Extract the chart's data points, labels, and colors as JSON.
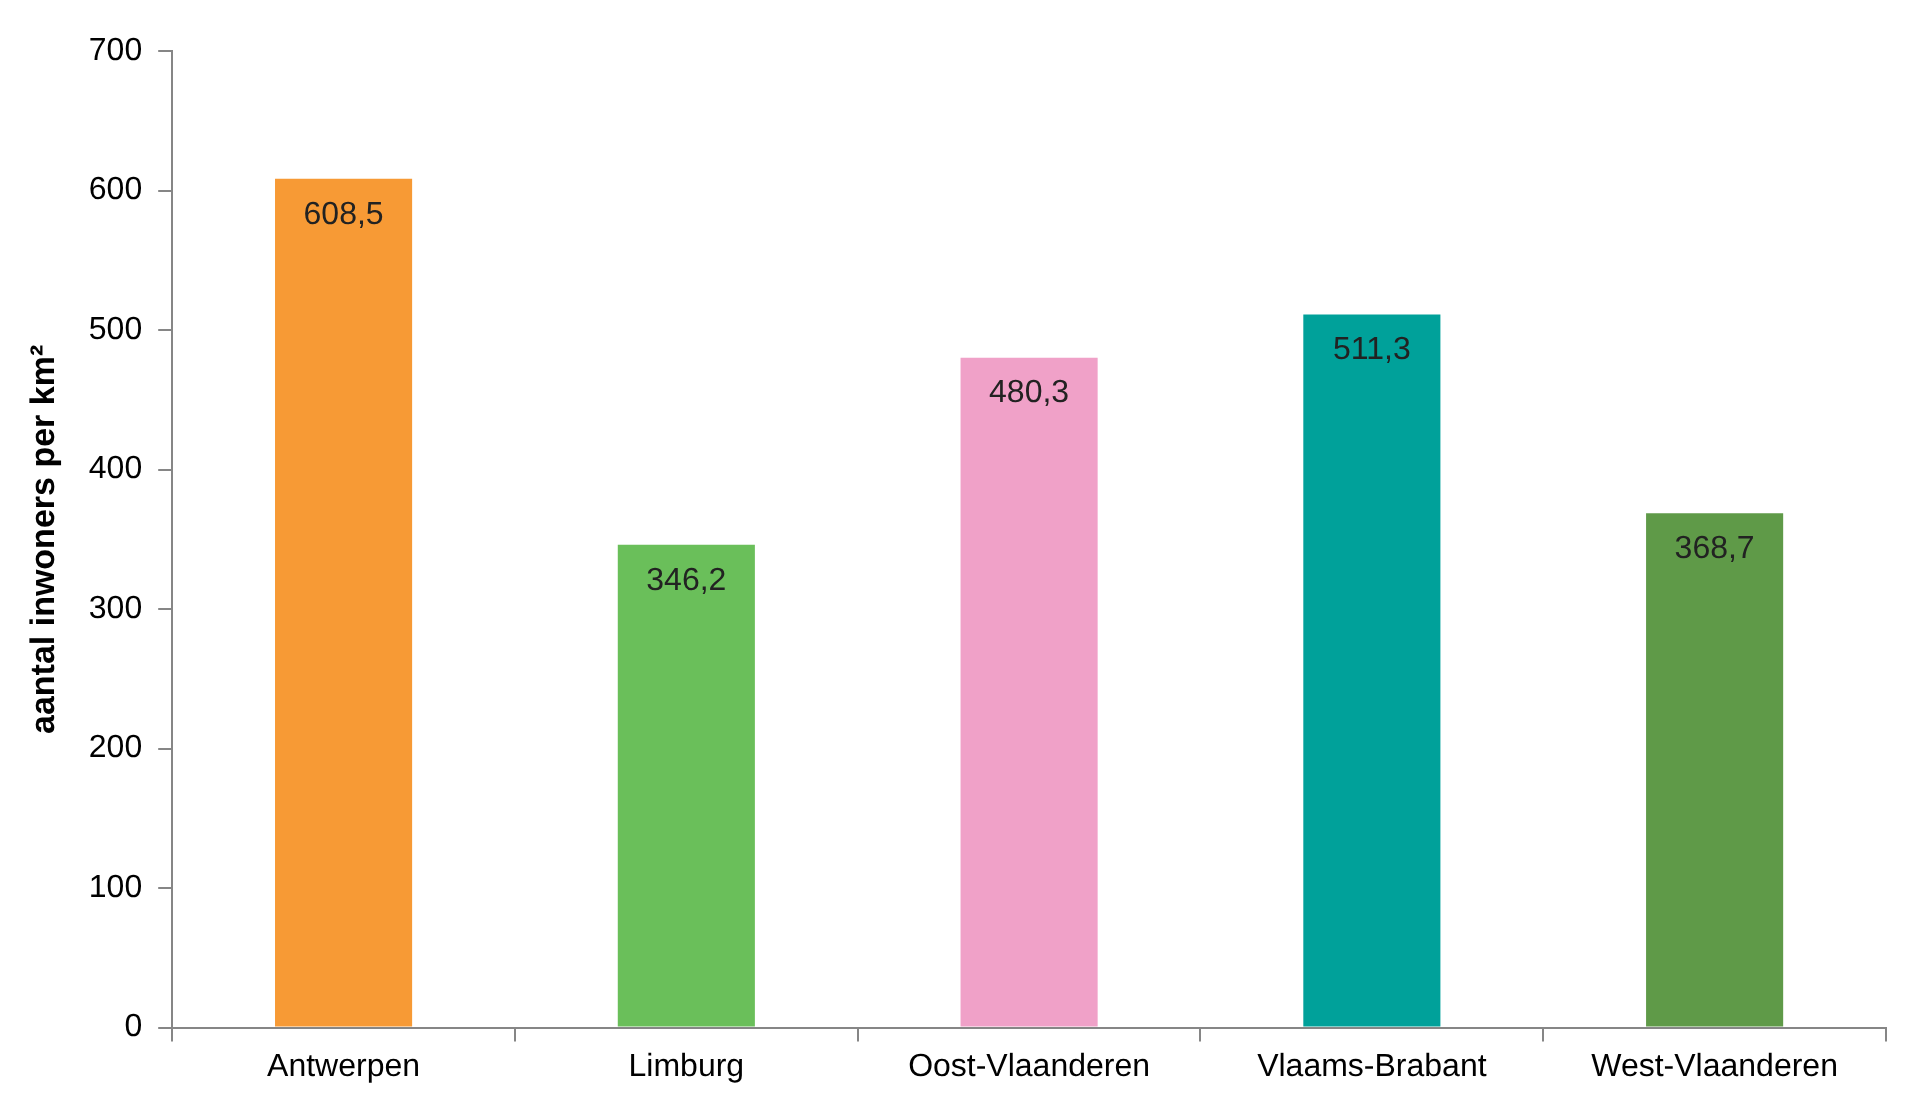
{
  "chart_data": {
    "type": "bar",
    "ylabel": "aantal inwoners per km²",
    "categories": [
      "Antwerpen",
      "Limburg",
      "Oost-Vlaanderen",
      "Vlaams-Brabant",
      "West-Vlaanderen"
    ],
    "values": [
      608.5,
      346.2,
      480.3,
      511.3,
      368.7
    ],
    "colors": [
      "#f79a35",
      "#6abf5a",
      "#f0a1c8",
      "#00a19a",
      "#5f9a48"
    ],
    "value_labels": [
      "608,5",
      "346,2",
      "480,3",
      "511,3",
      "368,7"
    ],
    "ylim": [
      0,
      700
    ],
    "yticks": [
      0,
      100,
      200,
      300,
      400,
      500,
      600,
      700
    ]
  }
}
